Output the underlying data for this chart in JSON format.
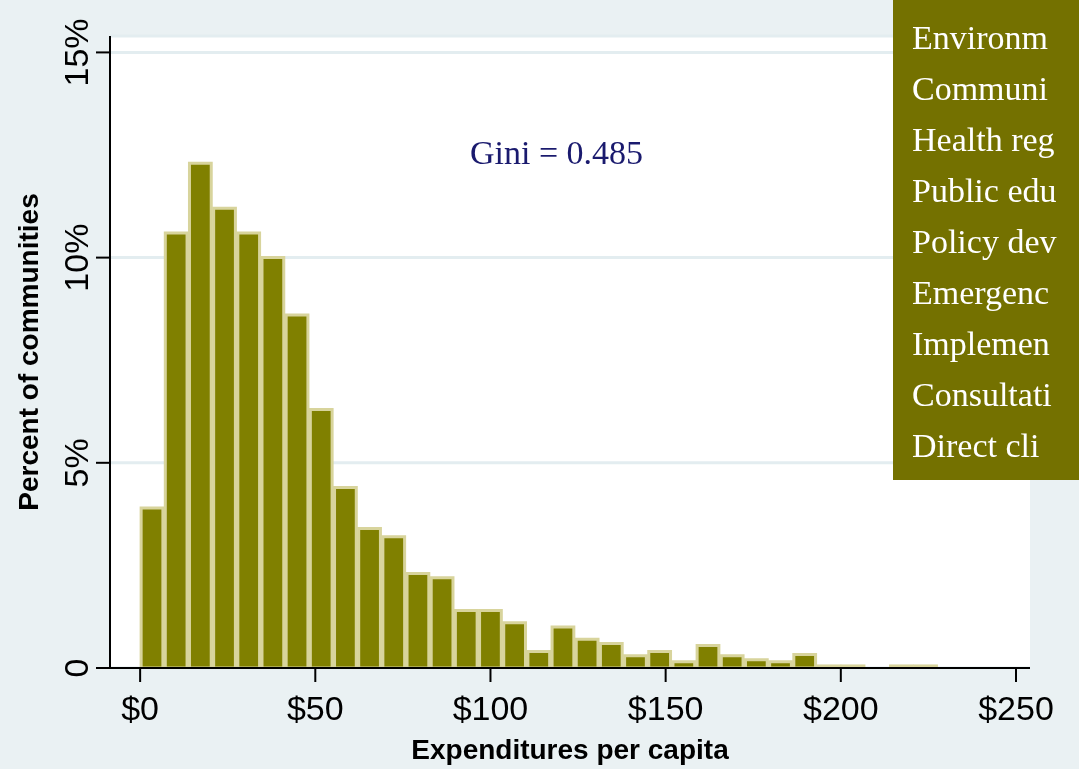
{
  "chart_data": {
    "type": "histogram",
    "xlabel": "Expenditures per capita",
    "ylabel": "Percent of communities",
    "bins": [
      0,
      6.9,
      13.8,
      20.7,
      27.6,
      34.5,
      41.4,
      48.3,
      55.2,
      62.1,
      69,
      75.9,
      82.8,
      89.7,
      96.6,
      103.5,
      110.4,
      117.3,
      124.2,
      131.1,
      138,
      144.9,
      151.8,
      158.7,
      165.6,
      172.5,
      179.4,
      186.3,
      193.2,
      200.1,
      207,
      213.9,
      220.8,
      227.7
    ],
    "values": [
      3.9,
      10.6,
      12.3,
      11.2,
      10.6,
      10.0,
      8.6,
      6.3,
      4.4,
      3.4,
      3.2,
      2.3,
      2.2,
      1.4,
      1.4,
      1.1,
      0.4,
      1.0,
      0.7,
      0.6,
      0.3,
      0.4,
      0.15,
      0.55,
      0.3,
      0.2,
      0.15,
      0.33,
      0.05,
      0.05,
      0,
      0.05,
      0.05
    ],
    "color": "#808000",
    "xlim": [
      -8.6,
      254
    ],
    "xticks": [
      {
        "value": 0,
        "label": "$0"
      },
      {
        "value": 50,
        "label": "$50"
      },
      {
        "value": 100,
        "label": "$100"
      },
      {
        "value": 150,
        "label": "$150"
      },
      {
        "value": 200,
        "label": "$200"
      },
      {
        "value": 250,
        "label": "$250"
      }
    ],
    "ylim": [
      0,
      15.4
    ],
    "yticks": [
      0,
      {
        "value": 5,
        "label": "5%"
      },
      {
        "value": 10,
        "label": "10%"
      },
      {
        "value": 15,
        "label": "15%"
      }
    ],
    "grid": "y",
    "legend": false,
    "annotations": [
      "Gini = 0.485",
      "Environm",
      "Communi",
      "Health reg",
      "Public edu",
      "Policy dev",
      "Emergenc",
      "Implemen",
      "Consultati",
      "Direct cli"
    ]
  }
}
